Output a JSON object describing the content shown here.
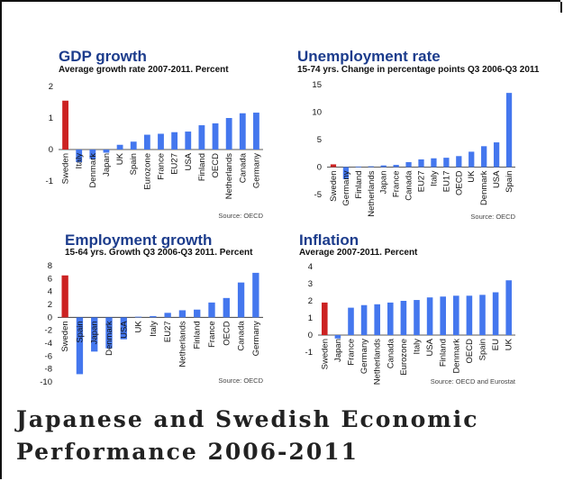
{
  "page_title_line1": "Japanese and Swedish Economic",
  "page_title_line2": "Performance 2006-2011",
  "colors": {
    "highlight": "#cc2222",
    "bar": "#4477ee",
    "title": "#1c3c8c"
  },
  "chart_data": [
    {
      "id": "gdp",
      "type": "bar",
      "title": "GDP growth",
      "subtitle": "Average growth rate 2007-2011. Percent",
      "source": "Source: OECD",
      "categories": [
        "Sweden",
        "Italy",
        "Denmark",
        "Japan",
        "UK",
        "Spain",
        "Eurozone",
        "France",
        "EU27",
        "USA",
        "Finland",
        "OECD",
        "Netherlands",
        "Canada",
        "Germany"
      ],
      "values": [
        1.55,
        -0.4,
        -0.3,
        -0.1,
        0.15,
        0.25,
        0.47,
        0.5,
        0.55,
        0.57,
        0.77,
        0.83,
        1.0,
        1.15,
        1.17
      ],
      "highlight": [
        "Sweden"
      ],
      "ylim": [
        -1,
        2
      ],
      "yticks": [
        -1,
        0,
        1,
        2
      ],
      "xlabel": "",
      "ylabel": ""
    },
    {
      "id": "unemployment",
      "type": "bar",
      "title": "Unemployment rate",
      "subtitle": "15-74 yrs. Change in percentage points Q3 2006-Q3 2011",
      "source": "Source: OECD",
      "categories": [
        "Sweden",
        "Germany",
        "Finland",
        "Netherlands",
        "Japan",
        "France",
        "Canada",
        "EU27",
        "Italy",
        "EU17",
        "OECD",
        "UK",
        "Denmark",
        "USA",
        "Spain"
      ],
      "values": [
        0.5,
        -2.2,
        0.1,
        0.15,
        0.3,
        0.4,
        0.9,
        1.4,
        1.6,
        1.7,
        2.0,
        2.8,
        3.8,
        4.5,
        13.5
      ],
      "highlight": [
        "Sweden"
      ],
      "ylim": [
        -5,
        15
      ],
      "yticks": [
        -5,
        0,
        5,
        10,
        15
      ],
      "xlabel": "",
      "ylabel": ""
    },
    {
      "id": "employment",
      "type": "bar",
      "title": "Employment growth",
      "subtitle": "15-64 yrs. Growth Q3 2006-Q3 2011. Percent",
      "source": "Source: OECD",
      "categories": [
        "Sweden",
        "Spain",
        "Japan",
        "Denmark",
        "USA",
        "UK",
        "Italy",
        "EU27",
        "Netherlands",
        "Finland",
        "France",
        "OECD",
        "Canada",
        "Germany"
      ],
      "values": [
        6.5,
        -8.8,
        -5.3,
        -4.8,
        -3.4,
        0.1,
        0.2,
        0.7,
        1.1,
        1.2,
        2.3,
        3.0,
        5.4,
        6.9
      ],
      "highlight": [
        "Sweden"
      ],
      "ylim": [
        -10,
        8
      ],
      "yticks": [
        -10,
        -8,
        -6,
        -4,
        -2,
        0,
        2,
        4,
        6,
        8
      ],
      "xlabel": "",
      "ylabel": ""
    },
    {
      "id": "inflation",
      "type": "bar",
      "title": "Inflation",
      "subtitle": "Average 2007-2011. Percent",
      "source": "Source: OECD and Eurostat",
      "categories": [
        "Sweden",
        "Japan",
        "France",
        "Germany",
        "Netherlands",
        "Canada",
        "Eurozone",
        "Italy",
        "USA",
        "Finland",
        "Denmark",
        "OECD",
        "Spain",
        "EU",
        "UK"
      ],
      "values": [
        1.9,
        -0.2,
        1.6,
        1.75,
        1.8,
        1.9,
        2.0,
        2.05,
        2.2,
        2.25,
        2.3,
        2.3,
        2.35,
        2.5,
        3.2
      ],
      "highlight": [
        "Sweden"
      ],
      "ylim": [
        -1,
        4
      ],
      "yticks": [
        -1,
        0,
        1,
        2,
        3,
        4
      ],
      "xlabel": "",
      "ylabel": ""
    }
  ]
}
